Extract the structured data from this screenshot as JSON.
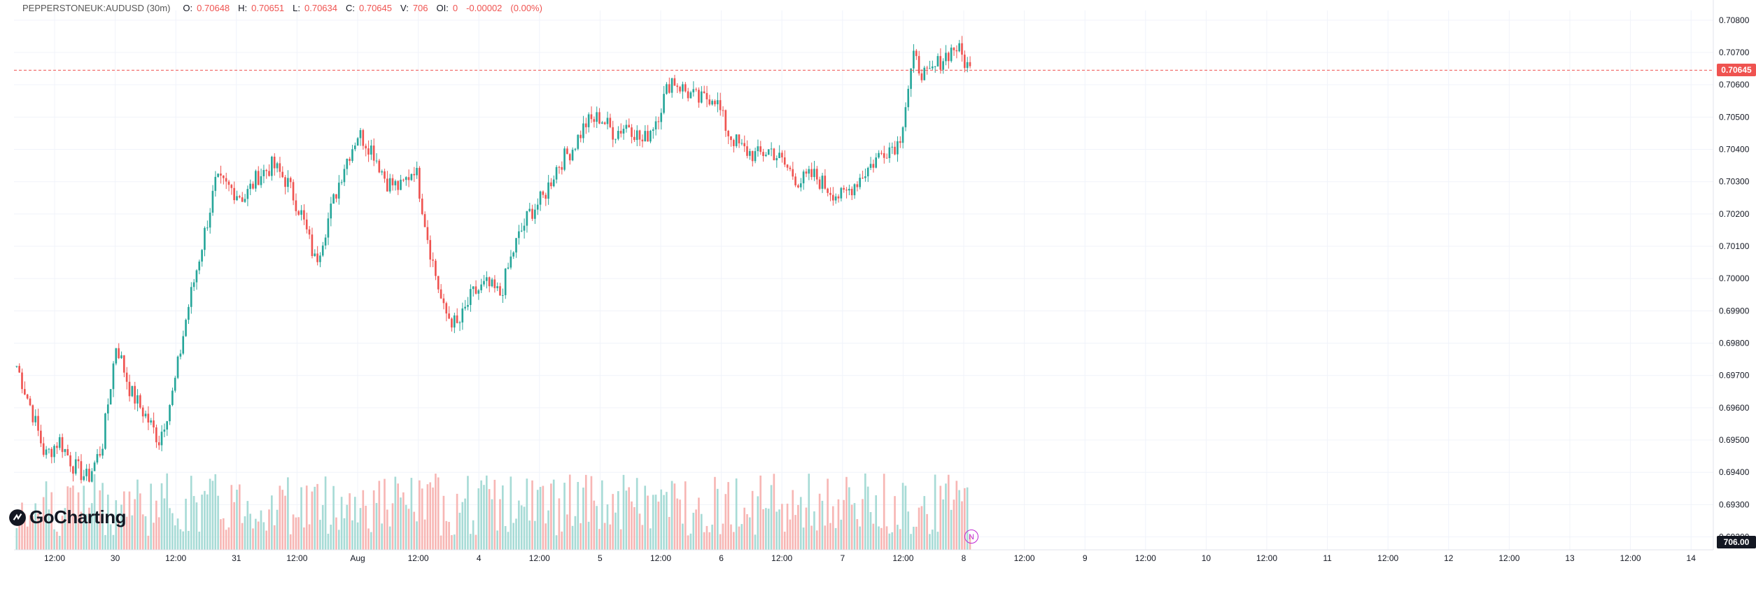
{
  "header": {
    "symbol": "PEPPERSTONEUK:AUDUSD (30m)",
    "open_label": "O:",
    "open": "0.70648",
    "high_label": "H:",
    "high": "0.70651",
    "low_label": "L:",
    "low": "0.70634",
    "close_label": "C:",
    "close": "0.70645",
    "volume_label": "V:",
    "volume": "706",
    "oi_label": "OI:",
    "oi": "0",
    "change": "-0.00002",
    "change_pct": "(0.00%)"
  },
  "logo": {
    "text": "GoCharting",
    "icon": "gocharting-logo-icon"
  },
  "news_marker": {
    "label": "N"
  },
  "colors": {
    "up": "#26a69a",
    "down": "#ef5350",
    "vol_up": "#a7dbd6",
    "vol_down": "#f7b6b4",
    "last_price": "#ef5350",
    "volume_tag": "#131722",
    "grid": "#f0f3fa",
    "news": "#c026d3"
  },
  "chart_data": {
    "type": "candlestick",
    "symbol": "PEPPERSTONEUK:AUDUSD",
    "interval": "30m",
    "y_axis": {
      "ticks": [
        "0.70800",
        "0.70700",
        "0.70600",
        "0.70500",
        "0.70400",
        "0.70300",
        "0.70200",
        "0.70100",
        "0.70000",
        "0.69900",
        "0.69800",
        "0.69700",
        "0.69600",
        "0.69500",
        "0.69400",
        "0.69300",
        "0.69200"
      ],
      "range": [
        0.6916,
        0.7083
      ]
    },
    "x_axis": {
      "ticks": [
        "12:00",
        "30",
        "12:00",
        "31",
        "12:00",
        "Aug",
        "12:00",
        "4",
        "12:00",
        "5",
        "12:00",
        "6",
        "12:00",
        "7",
        "12:00",
        "8",
        "12:00",
        "9",
        "12:00",
        "10",
        "12:00",
        "11",
        "12:00",
        "12",
        "12:00",
        "13",
        "12:00",
        "14"
      ]
    },
    "last_price": "0.70645",
    "last_volume": "706.00",
    "price_path": [
      [
        0.6973,
        0.696,
        0.6945,
        0.695,
        0.6942,
        0.6938
      ],
      [
        0.6948,
        0.698,
        0.6965,
        0.6958,
        0.695
      ],
      [
        0.6965,
        0.699,
        0.701,
        0.703,
        0.7028,
        0.7025,
        0.7032
      ],
      [
        0.7035,
        0.703,
        0.702,
        0.7005,
        0.702,
        0.7035,
        0.7045,
        0.704
      ],
      [
        0.703,
        0.7028,
        0.7035,
        0.701,
        0.699,
        0.6985,
        0.6995,
        0.6998
      ],
      [
        0.6995,
        0.701,
        0.702,
        0.7025,
        0.7035,
        0.704,
        0.7048,
        0.705,
        0.7045
      ],
      [
        0.7048,
        0.7042,
        0.705,
        0.7062,
        0.7058,
        0.7055,
        0.7057,
        0.7045,
        0.704
      ],
      [
        0.7038,
        0.704,
        0.7035,
        0.703,
        0.7032,
        0.7028,
        0.7025,
        0.703,
        0.7035
      ],
      [
        0.704,
        0.7042,
        0.7068,
        0.7062,
        0.7068,
        0.7072,
        0.70645
      ]
    ],
    "volume_max": 806,
    "volume_last": 706
  }
}
